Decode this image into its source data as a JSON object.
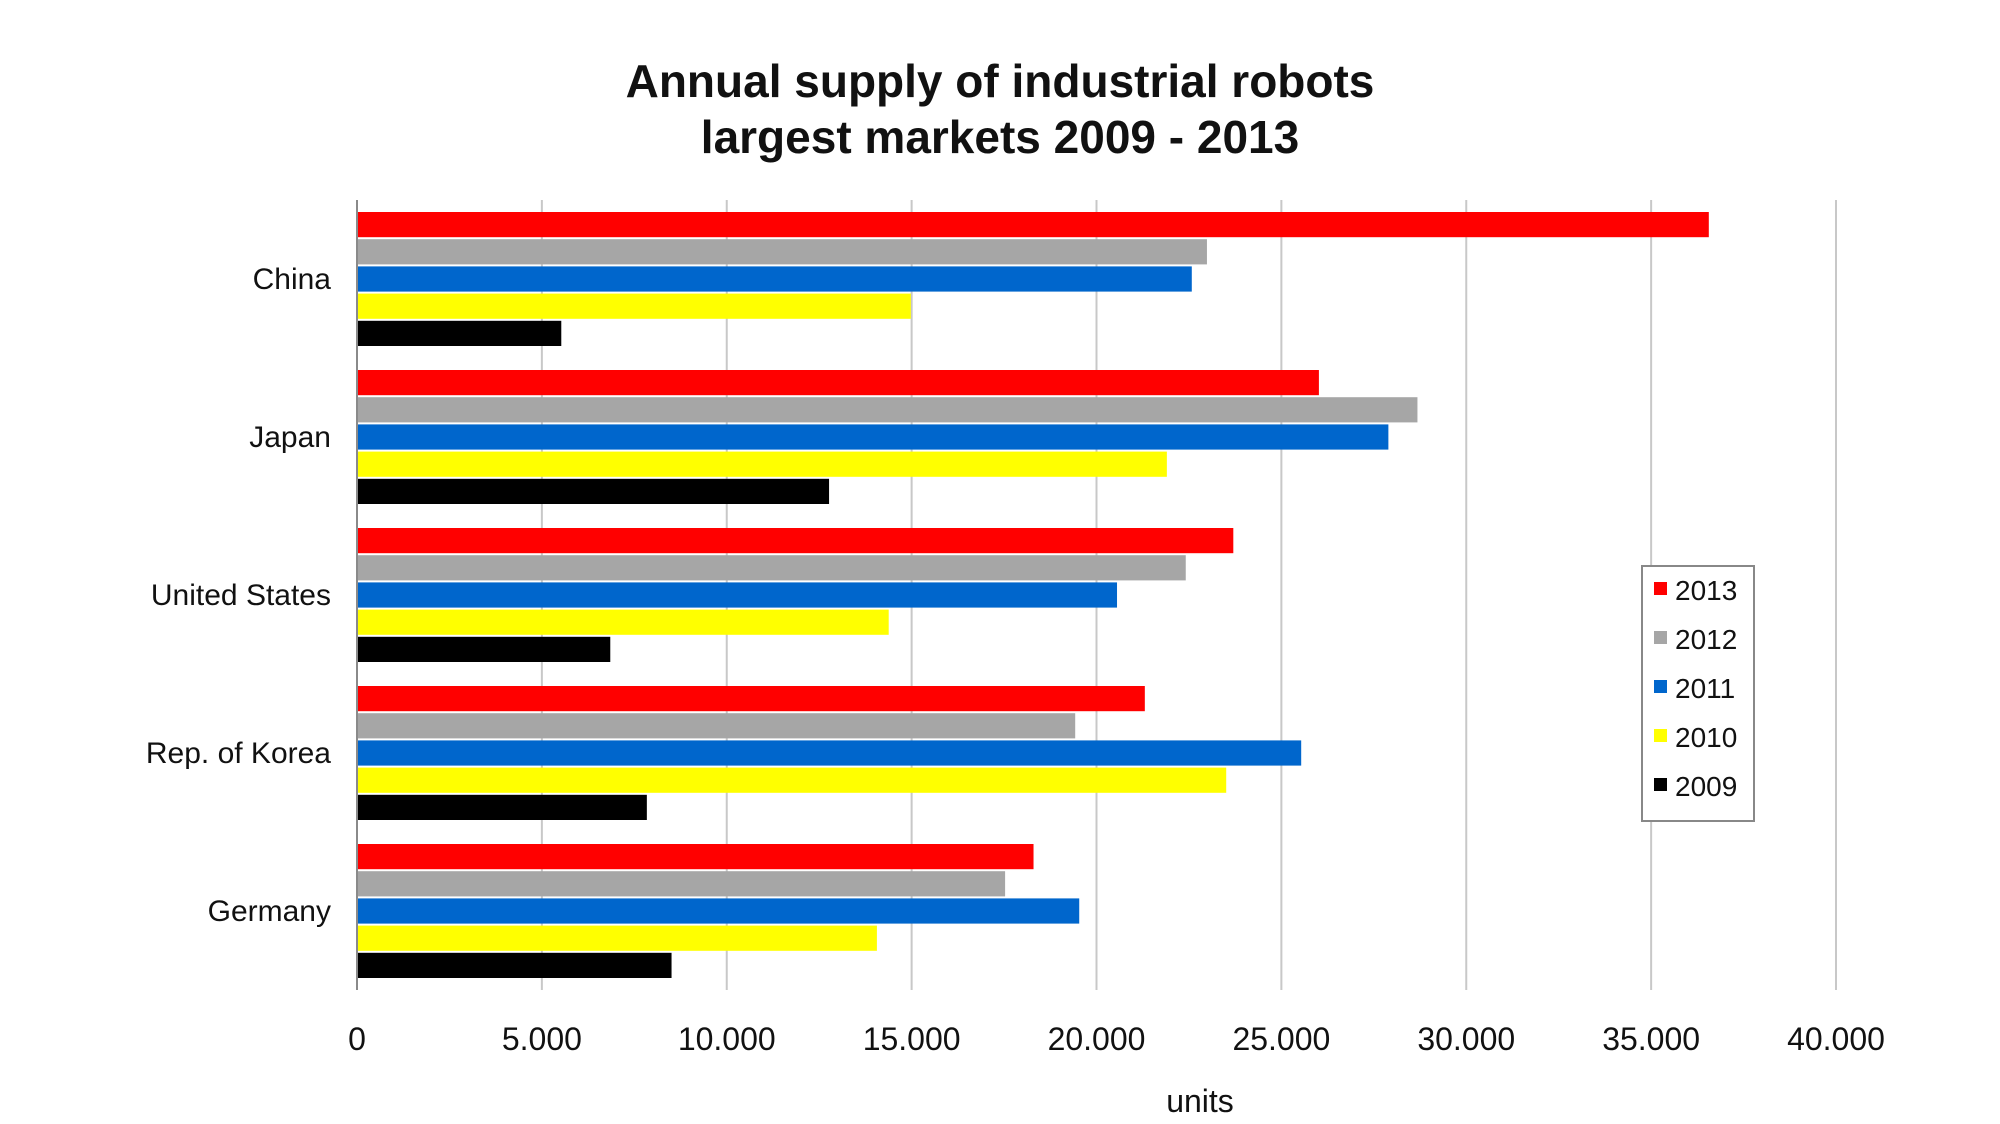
{
  "chart_data": {
    "type": "bar",
    "orientation": "horizontal",
    "title_lines": [
      "Annual supply of industrial robots",
      "largest markets 2009 - 2013"
    ],
    "xlabel": "units",
    "ylabel": "",
    "xlim": [
      0,
      40000
    ],
    "x_ticks": [
      0,
      5000,
      10000,
      15000,
      20000,
      25000,
      30000,
      35000,
      40000
    ],
    "x_tick_labels": [
      "0",
      "5.000",
      "10.000",
      "15.000",
      "20.000",
      "25.000",
      "30.000",
      "35.000",
      "40.000"
    ],
    "grid": "vertical",
    "legend_position": "right",
    "categories": [
      "China",
      "Japan",
      "United States",
      "Rep. of Korea",
      "Germany"
    ],
    "series": [
      {
        "name": "2013",
        "color": "#ff0000",
        "values": [
          36560,
          26015,
          23700,
          21307,
          18297
        ]
      },
      {
        "name": "2012",
        "color": "#a6a6a6",
        "values": [
          22987,
          28680,
          22414,
          19424,
          17528
        ]
      },
      {
        "name": "2011",
        "color": "#0066cc",
        "values": [
          22577,
          27894,
          20555,
          25536,
          19533
        ]
      },
      {
        "name": "2010",
        "color": "#ffff00",
        "values": [
          14978,
          21903,
          14380,
          23508,
          14061
        ]
      },
      {
        "name": "2009",
        "color": "#000000",
        "values": [
          5525,
          12767,
          6850,
          7839,
          8507
        ]
      }
    ]
  }
}
